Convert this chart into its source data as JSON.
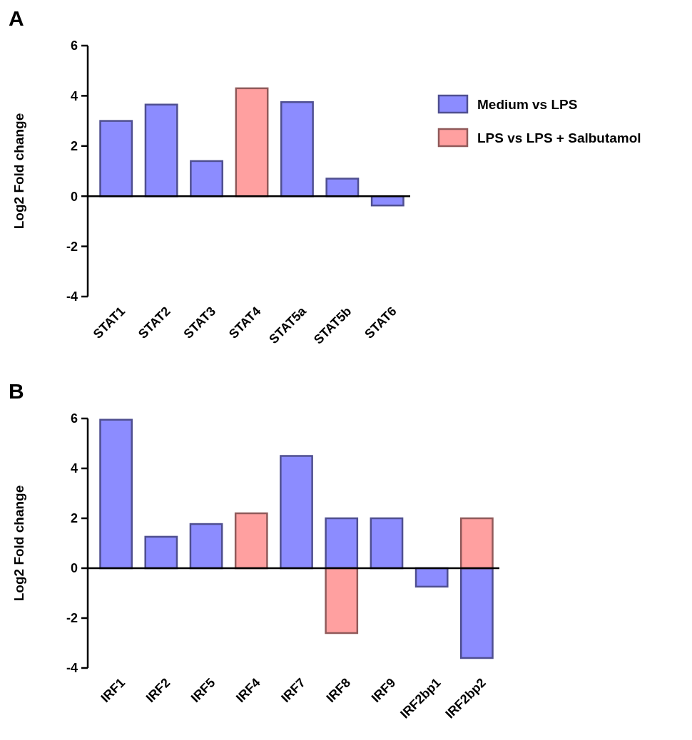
{
  "chart_data": [
    {
      "type": "bar",
      "title": "A",
      "ylabel": "Log2 Fold change",
      "categories": [
        "STAT1",
        "STAT2",
        "STAT3",
        "STAT4",
        "STAT5a",
        "STAT5b",
        "STAT6"
      ],
      "ylim": [
        -4,
        6
      ],
      "yticks": [
        -4,
        -2,
        0,
        2,
        4,
        6
      ],
      "legend": "right",
      "series": [
        {
          "name": "Medium vs LPS",
          "color": "#8c8cff",
          "values": [
            3.0,
            3.65,
            1.4,
            null,
            3.75,
            0.7,
            -0.37
          ]
        },
        {
          "name": "LPS vs LPS + Salbutamol",
          "color": "#ffa0a0",
          "values": [
            null,
            null,
            null,
            4.3,
            null,
            null,
            null
          ]
        }
      ]
    },
    {
      "type": "bar",
      "title": "B",
      "ylabel": "Log2 Fold change",
      "categories": [
        "IRF1",
        "IRF2",
        "IRF5",
        "IRF4",
        "IRF7",
        "IRF8",
        "IRF9",
        "IRF2bp1",
        "IRF2bp2"
      ],
      "ylim": [
        -4,
        6
      ],
      "yticks": [
        -4,
        -2,
        0,
        2,
        4,
        6
      ],
      "series": [
        {
          "color": "#8c8cff",
          "values": [
            5.95,
            1.26,
            1.77,
            null,
            4.5,
            2.0,
            2.0,
            -0.74,
            -3.6
          ]
        },
        {
          "color": "#ffa0a0",
          "values": [
            null,
            null,
            null,
            2.2,
            null,
            -2.6,
            null,
            null,
            2.0
          ]
        }
      ]
    }
  ]
}
